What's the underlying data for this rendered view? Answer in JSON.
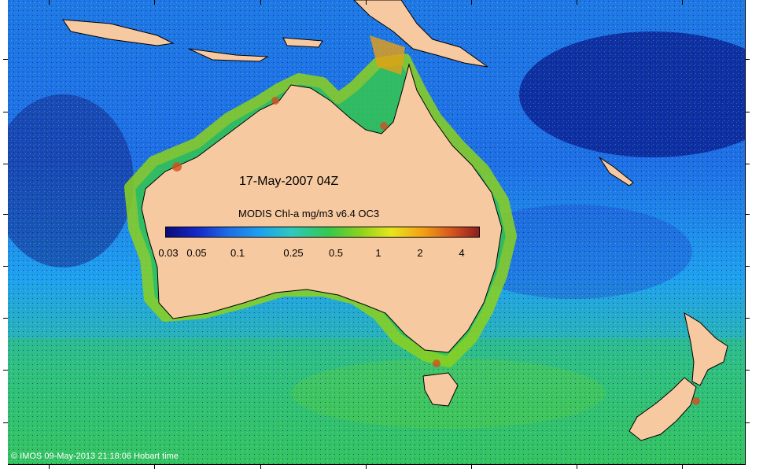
{
  "map": {
    "date_label": "17-May-2007 04Z",
    "colorbar_title": "MODIS Chl-a mg/m3 v6.4 OC3",
    "colorbar_ticks": [
      "0.03",
      "0.05",
      "0.1",
      "0.25",
      "0.5",
      "1",
      "2",
      "4"
    ],
    "copyright": "© IMOS 09-May-2013 21:18:06 Hobart time",
    "colors": {
      "land": "#f7c9a0",
      "ocean_low": "#1428c8",
      "ocean_mid": "#1ea0f0",
      "ocean_high": "#34c84e",
      "bloom": "#e6e61e",
      "very_high": "#d2501e"
    }
  }
}
